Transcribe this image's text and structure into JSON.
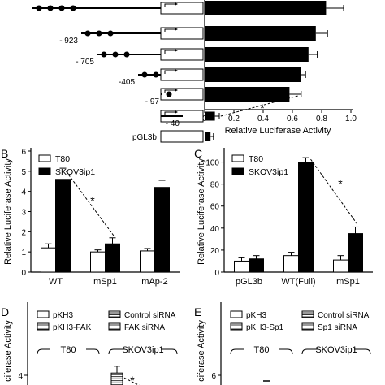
{
  "chart_data": [
    {
      "panel": "A",
      "type": "bar",
      "orientation": "horizontal",
      "constructs": [
        "",
        "- 923",
        "- 705",
        "-405",
        "- 97",
        "- 40",
        "pGL3b"
      ],
      "values": [
        0.83,
        0.76,
        0.71,
        0.66,
        0.58,
        0.07,
        0.04
      ],
      "errors": [
        0.12,
        0.08,
        0.06,
        0.03,
        0.08,
        0.03,
        0.02
      ],
      "xlabel": "Relative Luciferase Activity",
      "xlim": [
        0,
        1.0
      ],
      "xticks": [
        "0",
        "0.2",
        "0.4",
        "0.6",
        "0.8",
        "1.0"
      ],
      "significance": "*"
    },
    {
      "panel": "B",
      "type": "bar",
      "categories": [
        "WT",
        "mSp1",
        "mAp-2"
      ],
      "series": [
        {
          "name": "T80",
          "values": [
            1.2,
            1.0,
            1.05
          ],
          "errors": [
            0.2,
            0.1,
            0.12
          ],
          "color": "#ffffff"
        },
        {
          "name": "SKOV3ip1",
          "values": [
            4.6,
            1.4,
            4.2
          ],
          "errors": [
            0.55,
            0.3,
            0.35
          ],
          "color": "#000000"
        }
      ],
      "ylabel": "Relative Luciferase Activity",
      "ylim": [
        0,
        6
      ],
      "yticks": [
        "0",
        "1",
        "2",
        "3",
        "4",
        "5",
        "6"
      ],
      "significance": "*"
    },
    {
      "panel": "C",
      "type": "bar",
      "categories": [
        "pGL3b",
        "WT(Full)",
        "mSp1"
      ],
      "series": [
        {
          "name": "T80",
          "values": [
            10,
            15,
            11
          ],
          "errors": [
            3,
            3,
            4
          ],
          "color": "#ffffff"
        },
        {
          "name": "SKOV3ip1",
          "values": [
            12,
            100,
            35
          ],
          "errors": [
            3,
            4,
            6
          ],
          "color": "#000000"
        }
      ],
      "ylabel": "Relative Luciferase Activity",
      "ylim": [
        0,
        110
      ],
      "yticks": [
        "0",
        "20",
        "40",
        "60",
        "80",
        "100"
      ],
      "significance": "*"
    },
    {
      "panel": "D",
      "type": "bar",
      "legend": [
        "pKH3",
        "Control siRNA",
        "pKH3-FAK",
        "FAK siRNA"
      ],
      "groups": [
        "T80",
        "SKOV3ip1"
      ],
      "ylabel": "ciferase Activity",
      "yticks": [
        "4"
      ],
      "visible_values": {
        "SKOV3ip1 Control siRNA": 4.2
      },
      "visible_errors": {
        "SKOV3ip1 Control siRNA": 0.6
      },
      "significance": "*"
    },
    {
      "panel": "E",
      "type": "bar",
      "legend": [
        "pKH3",
        "Control siRNA",
        "pKH3-Sp1",
        "Sp1 siRNA"
      ],
      "groups": [
        "T80",
        "SKOV3ip1"
      ],
      "ylabel": "ciferase Activity",
      "yticks": [
        "6"
      ]
    }
  ]
}
